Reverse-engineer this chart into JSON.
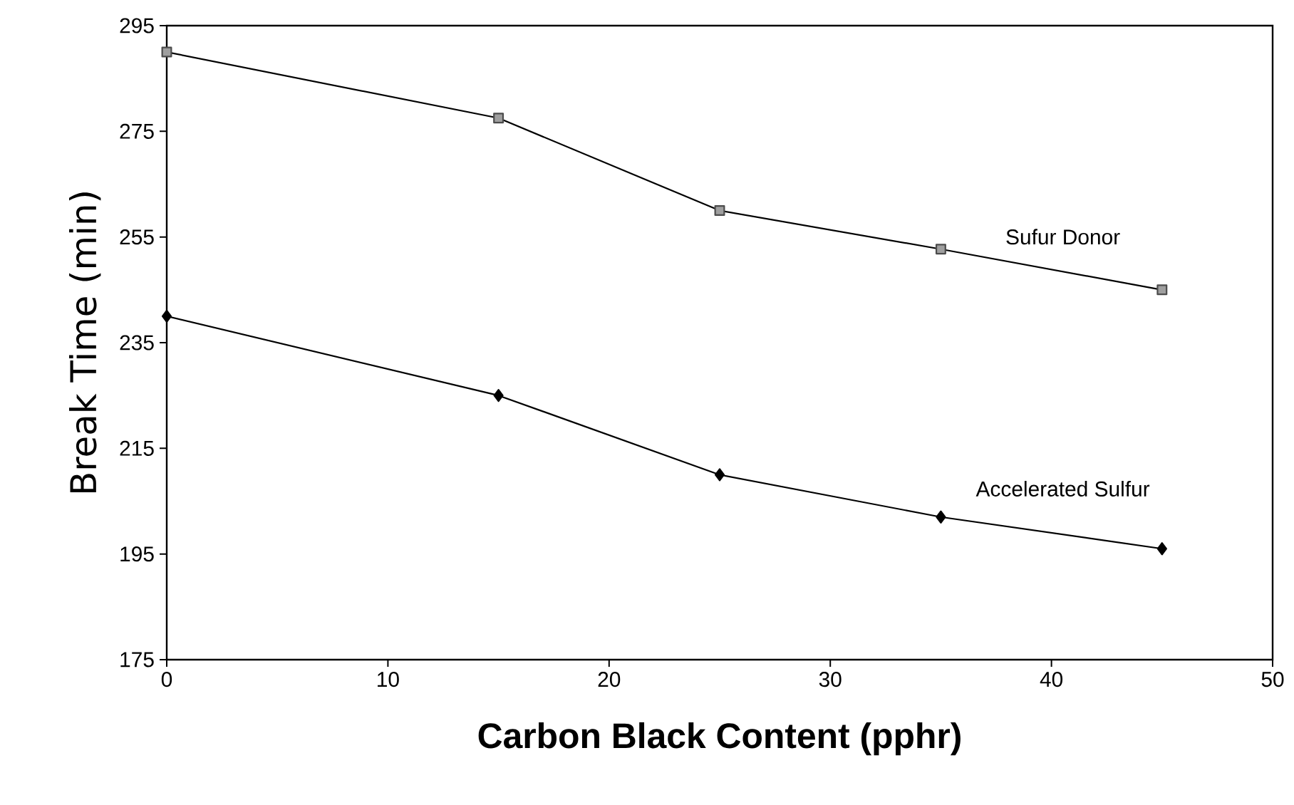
{
  "chart_data": {
    "type": "line",
    "xlabel": "Carbon Black Content (pphr)",
    "ylabel": "Break Time (min)",
    "xlim": [
      0,
      50
    ],
    "ylim": [
      175,
      295
    ],
    "xticks": [
      0,
      10,
      20,
      30,
      40,
      50
    ],
    "yticks": [
      175,
      195,
      215,
      235,
      255,
      275,
      295
    ],
    "grid": false,
    "line_style": "solid",
    "series": [
      {
        "name": "Sufur Donor",
        "color": "#000000",
        "marker": "square",
        "x": [
          0,
          15,
          25,
          35,
          45
        ],
        "values": [
          290,
          277.5,
          260,
          252.7,
          245
        ]
      },
      {
        "name": "Accelerated Sulfur",
        "color": "#000000",
        "marker": "diamond",
        "x": [
          0,
          15,
          25,
          35,
          45
        ],
        "values": [
          240,
          225,
          210,
          202,
          196
        ]
      }
    ]
  }
}
